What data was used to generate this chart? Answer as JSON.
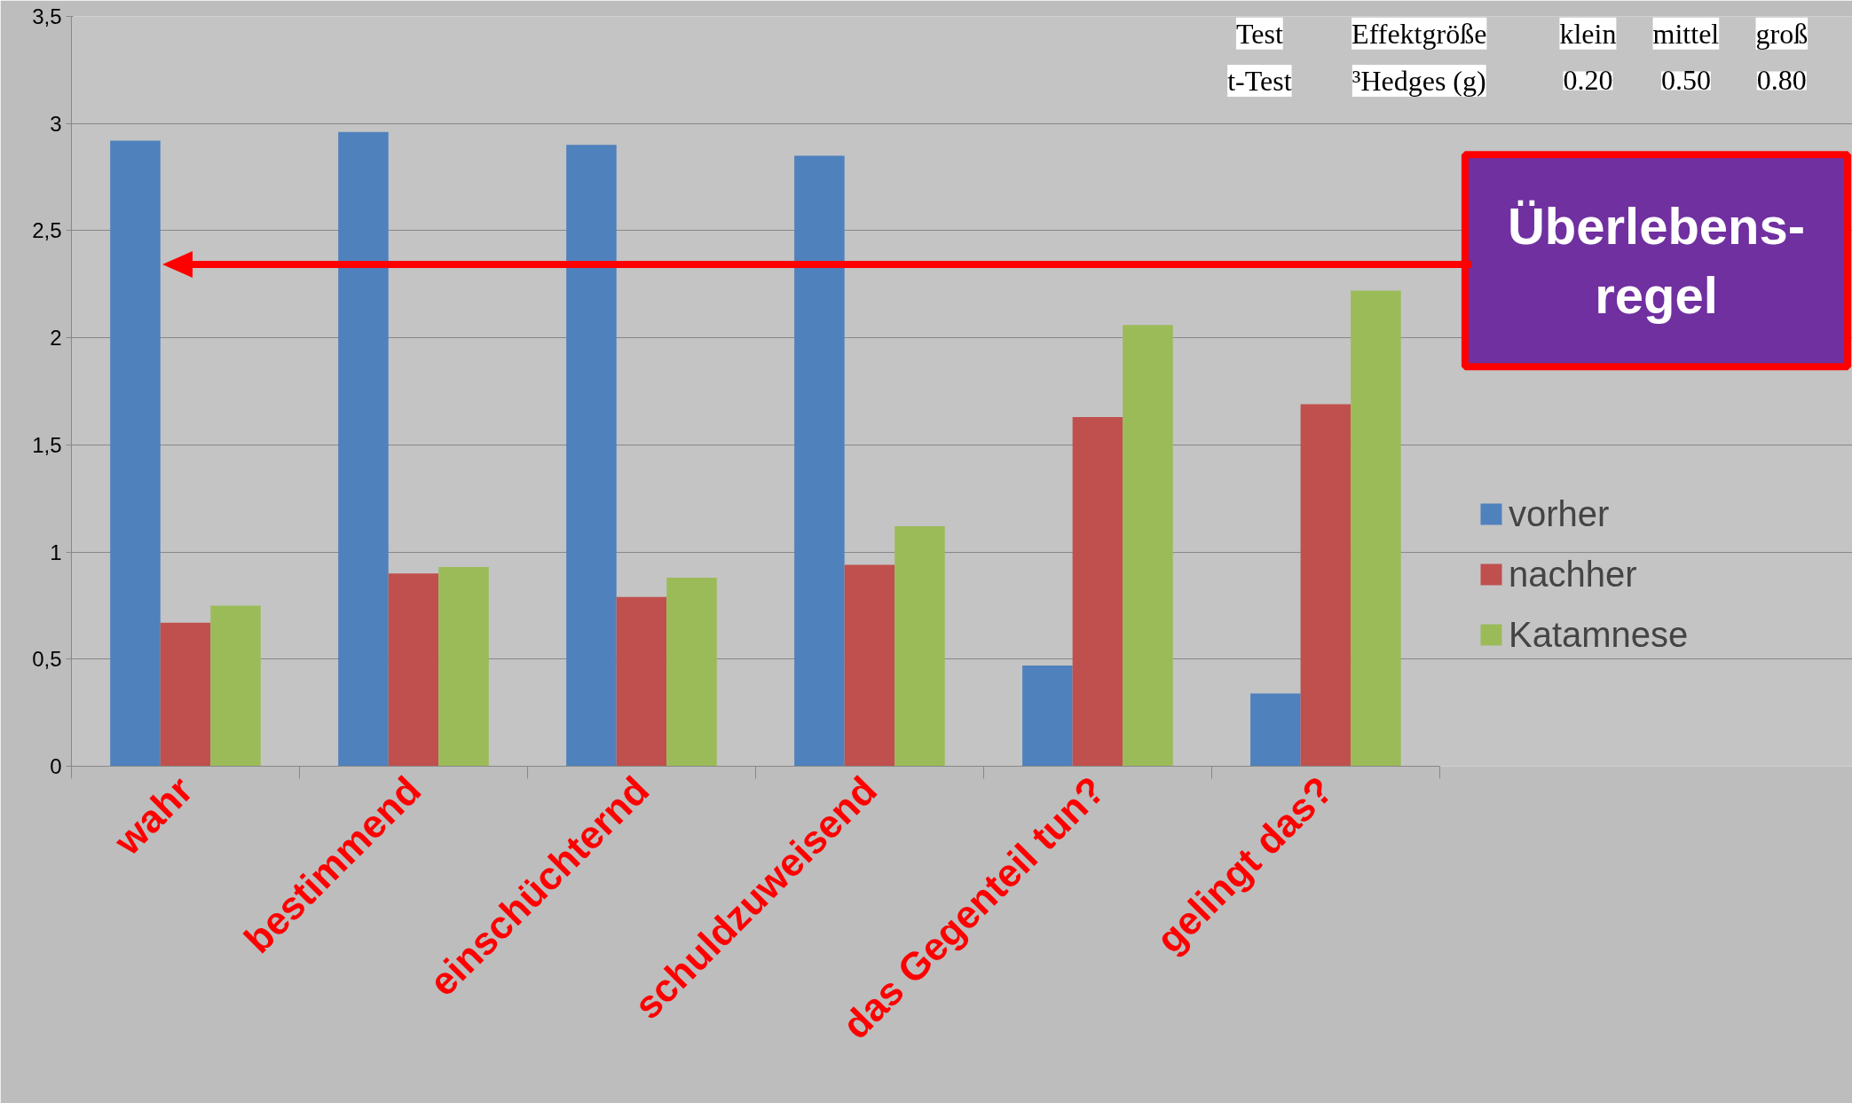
{
  "chart_data": {
    "type": "bar",
    "categories": [
      "wahr",
      "bestimmend",
      "einschüchternd",
      "schuldzuweisend",
      "das Gegenteil tun?",
      "gelingt das?"
    ],
    "series": [
      {
        "name": "vorher",
        "color": "#4f81bd",
        "values": [
          2.92,
          2.96,
          2.9,
          2.85,
          0.47,
          0.34
        ]
      },
      {
        "name": "nachher",
        "color": "#c0504d",
        "values": [
          0.67,
          0.9,
          0.79,
          0.94,
          1.63,
          1.69
        ]
      },
      {
        "name": "Katamnese",
        "color": "#9bbb59",
        "values": [
          0.75,
          0.93,
          0.88,
          1.12,
          2.06,
          2.22
        ]
      }
    ],
    "ylim": [
      0,
      3.5
    ],
    "yticks": [
      0,
      {
        "value": 0.5,
        "label": "0,5"
      },
      1,
      {
        "value": 1.5,
        "label": "1,5"
      },
      2,
      {
        "value": 2.5,
        "label": "2,5"
      },
      3,
      {
        "value": 3.5,
        "label": "3,5"
      }
    ],
    "grid": "y",
    "legend": "right",
    "annotations": [
      "Test\tEffektgröße\tklein\tmittel\tgroß",
      "t-Test\t³Hedges (g)\t0.20\t0.50\t0.80",
      "Überlebens-\nregel"
    ]
  }
}
